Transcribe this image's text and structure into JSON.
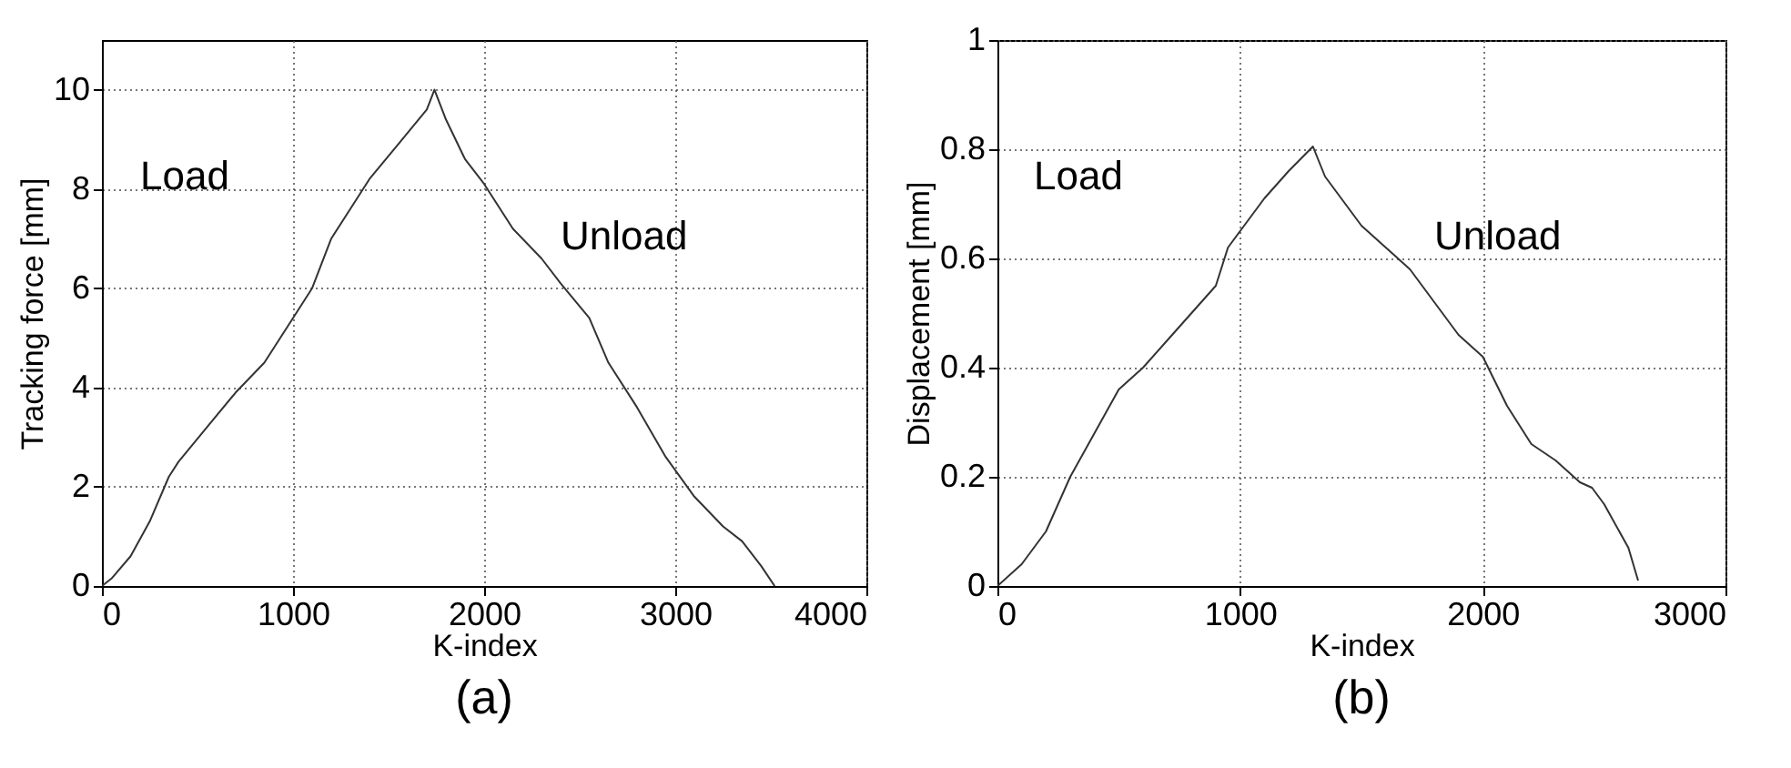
{
  "chart_data": [
    {
      "type": "line",
      "title": "(a)",
      "xlabel": "K-index",
      "ylabel": "Tracking force [mm]",
      "xlim": [
        0,
        4000
      ],
      "xticks": [
        0,
        1000,
        2000,
        3000,
        4000
      ],
      "ylim": [
        0,
        11
      ],
      "yticks": [
        0,
        2,
        4,
        6,
        8,
        10
      ],
      "grid": true,
      "line_style": "solid",
      "annotations": [
        "Load",
        "Unload"
      ],
      "series": [
        {
          "color": "#333333",
          "x": [
            0,
            50,
            150,
            250,
            350,
            400,
            550,
            700,
            850,
            1000,
            1100,
            1200,
            1300,
            1400,
            1550,
            1700,
            1740,
            1800,
            1900,
            2000,
            2150,
            2300,
            2400,
            2550,
            2650,
            2800,
            2950,
            3100,
            3250,
            3350,
            3450,
            3520
          ],
          "values": [
            0,
            0.15,
            0.6,
            1.3,
            2.2,
            2.5,
            3.2,
            3.9,
            4.5,
            5.4,
            6.0,
            7.0,
            7.6,
            8.2,
            8.9,
            9.6,
            10.0,
            9.4,
            8.6,
            8.1,
            7.2,
            6.6,
            6.1,
            5.4,
            4.5,
            3.6,
            2.6,
            1.8,
            1.2,
            0.9,
            0.4,
            0
          ]
        }
      ]
    },
    {
      "type": "line",
      "title": "(b)",
      "xlabel": "K-index",
      "ylabel": "Displacement [mm]",
      "xlim": [
        0,
        3000
      ],
      "xticks": [
        0,
        1000,
        2000,
        3000
      ],
      "ylim": [
        0,
        1
      ],
      "yticks": [
        0,
        0.2,
        0.4,
        0.6,
        0.8,
        1
      ],
      "grid": true,
      "line_style": "solid",
      "annotations": [
        "Load",
        "Unload"
      ],
      "series": [
        {
          "color": "#333333",
          "x": [
            0,
            100,
            200,
            300,
            400,
            500,
            600,
            700,
            800,
            900,
            950,
            1000,
            1100,
            1200,
            1300,
            1350,
            1400,
            1500,
            1600,
            1700,
            1800,
            1900,
            2000,
            2100,
            2200,
            2300,
            2400,
            2450,
            2500,
            2600,
            2640
          ],
          "values": [
            0,
            0.04,
            0.1,
            0.2,
            0.28,
            0.36,
            0.4,
            0.45,
            0.5,
            0.55,
            0.62,
            0.65,
            0.71,
            0.76,
            0.805,
            0.75,
            0.72,
            0.66,
            0.62,
            0.58,
            0.52,
            0.46,
            0.42,
            0.33,
            0.26,
            0.23,
            0.19,
            0.18,
            0.15,
            0.07,
            0.01
          ]
        }
      ]
    }
  ]
}
